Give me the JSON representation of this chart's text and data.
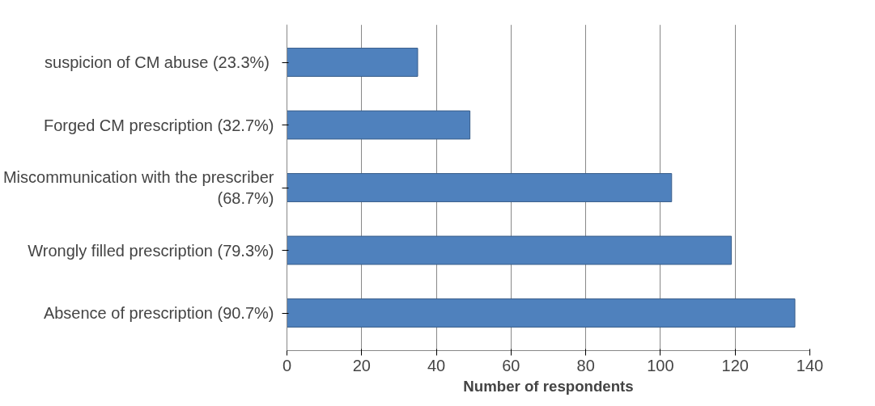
{
  "chart_data": {
    "type": "bar",
    "orientation": "horizontal",
    "xlabel": "Number of respondents",
    "categories": [
      "suspicion  of CM abuse (23.3%)",
      "Forged CM prescription (32.7%)",
      "Miscommunication with the prescriber\n(68.7%)",
      "Wrongly filled prescription (79.3%)",
      "Absence of prescription (90.7%)"
    ],
    "values": [
      35,
      49,
      103,
      119,
      136
    ],
    "color": "#4f81bd",
    "xlim": [
      0,
      140
    ],
    "xticks": [
      0,
      20,
      40,
      60,
      80,
      100,
      120,
      140
    ],
    "grid": "x"
  }
}
